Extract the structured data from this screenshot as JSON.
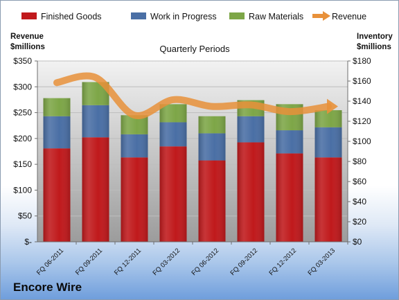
{
  "company": "Encore Wire",
  "chart_data": {
    "type": "bar",
    "stacked": true,
    "title": "Quarterly Periods",
    "categories": [
      "FQ 06-2011",
      "FQ 09-2011",
      "FQ 12-2011",
      "FQ 03-2012",
      "FQ 06-2012",
      "FQ 09-2012",
      "FQ 12-2012",
      "FQ 03-2013"
    ],
    "y_left": {
      "label_line1": "Revenue",
      "label_line2": "$millions",
      "ylim": [
        0,
        350
      ],
      "ticks": [
        0,
        50,
        100,
        150,
        200,
        250,
        300,
        350
      ],
      "tick_labels": [
        "$-",
        "$50",
        "$100",
        "$150",
        "$200",
        "$250",
        "$300",
        "$350"
      ]
    },
    "y_right": {
      "label_line1": "Inventory",
      "label_line2": "$millions",
      "ylim": [
        0,
        180
      ],
      "ticks": [
        0,
        20,
        40,
        60,
        80,
        100,
        120,
        140,
        160,
        180
      ],
      "tick_labels": [
        "$0",
        "$20",
        "$40",
        "$60",
        "$80",
        "$100",
        "$120",
        "$140",
        "$160",
        "$180"
      ]
    },
    "series": [
      {
        "name": "Finished Goods",
        "axis": "right",
        "kind": "bar",
        "color": "#c0191c",
        "values": [
          93,
          104,
          84,
          95,
          81,
          99,
          88,
          84
        ]
      },
      {
        "name": "Work in Progress",
        "axis": "right",
        "kind": "bar",
        "color": "#4a6fa5",
        "values": [
          32,
          32,
          23,
          24,
          27,
          26,
          23,
          30
        ]
      },
      {
        "name": "Raw Materials",
        "axis": "right",
        "kind": "bar",
        "color": "#7da647",
        "values": [
          18,
          23,
          19,
          18,
          17,
          16,
          26,
          17
        ]
      },
      {
        "name": "Revenue",
        "axis": "left",
        "kind": "line",
        "color": "#e8913a",
        "values": [
          308,
          318,
          245,
          275,
          262,
          265,
          252,
          262
        ]
      }
    ],
    "grid": true,
    "legend_position": "top"
  }
}
